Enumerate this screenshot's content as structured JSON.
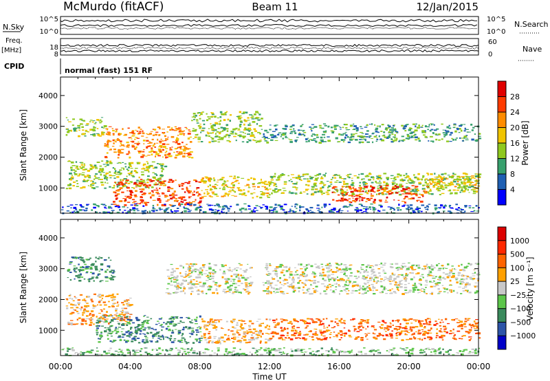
{
  "header": {
    "station": "McMurdo (fitACF)",
    "beam": "Beam 11",
    "date": "12/Jan/2015"
  },
  "panel_labels": {
    "nsky": "N.Sky",
    "nsearch": "N.Search",
    "freq": "Freq.",
    "freq_unit": "[MHz]",
    "nave": "Nave",
    "cpid": "CPID",
    "program": "normal (fast) 151 RF",
    "nsky_ticks": [
      "10^5",
      "10^0"
    ],
    "nsearch_ticks": [
      "10^5",
      "10^0"
    ],
    "freq_ticks": [
      "18",
      "8"
    ],
    "nave_ticks": [
      "60",
      "0"
    ]
  },
  "chart_data": [
    {
      "type": "heatmap",
      "name": "power",
      "xlabel": "",
      "ylabel": "Slant Range [km]",
      "xlim": [
        "00:00",
        "24:00"
      ],
      "ylim": [
        180,
        4600
      ],
      "y_ticks": [
        1000,
        2000,
        3000,
        4000
      ],
      "colorbar": {
        "label": "Power [dB]",
        "ticks": [
          "28",
          "24",
          "20",
          "16",
          "12",
          "8",
          "4"
        ],
        "colors": [
          "#0000ff",
          "#1f5fb3",
          "#37a06d",
          "#8fc91f",
          "#f0c400",
          "#ff8c00",
          "#ff3b00",
          "#e00000"
        ]
      },
      "regions": [
        {
          "t": [
            0.3,
            2.5
          ],
          "r": [
            2700,
            3300
          ],
          "level": 3
        },
        {
          "t": [
            2.5,
            7.5
          ],
          "r": [
            2000,
            3000
          ],
          "level": 5
        },
        {
          "t": [
            7.5,
            11.5
          ],
          "r": [
            2500,
            3500
          ],
          "level": 3
        },
        {
          "t": [
            11.5,
            24
          ],
          "r": [
            2500,
            3100
          ],
          "level": 2
        },
        {
          "t": [
            0.3,
            6
          ],
          "r": [
            1000,
            1900
          ],
          "level": 3
        },
        {
          "t": [
            3,
            8
          ],
          "r": [
            450,
            1300
          ],
          "level": 6
        },
        {
          "t": [
            8,
            12
          ],
          "r": [
            700,
            1400
          ],
          "level": 4
        },
        {
          "t": [
            12,
            24
          ],
          "r": [
            800,
            1500
          ],
          "level": 3
        },
        {
          "t": [
            15.5,
            21
          ],
          "r": [
            550,
            1100
          ],
          "level": 6
        },
        {
          "t": [
            21,
            24
          ],
          "r": [
            900,
            1500
          ],
          "level": 4
        },
        {
          "t": [
            0,
            24
          ],
          "r": [
            200,
            500
          ],
          "level": 1
        }
      ]
    },
    {
      "type": "heatmap",
      "name": "velocity",
      "xlabel": "Time UT",
      "ylabel": "Slant Range [km]",
      "xlim": [
        "00:00",
        "24:00"
      ],
      "ylim": [
        180,
        4600
      ],
      "x_ticks": [
        "00:00",
        "04:00",
        "08:00",
        "12:00",
        "16:00",
        "20:00",
        "00:00"
      ],
      "y_ticks": [
        1000,
        2000,
        3000,
        4000
      ],
      "colorbar": {
        "label": "Velocity [m s⁻¹]",
        "ticks": [
          "1000",
          "500",
          "100",
          "25",
          "−25",
          "−100",
          "−500",
          "−1000"
        ],
        "colors": [
          "#0000c8",
          "#2d55a8",
          "#3a8a5c",
          "#5cc64a",
          "#c8c8c8",
          "#ffa000",
          "#ff6400",
          "#ff2800",
          "#dc0000"
        ]
      },
      "regions": [
        {
          "t": [
            0.3,
            3
          ],
          "r": [
            2600,
            3400
          ],
          "level": 2
        },
        {
          "t": [
            0.3,
            4
          ],
          "r": [
            1200,
            2200
          ],
          "level": 5
        },
        {
          "t": [
            2,
            8
          ],
          "r": [
            600,
            1500
          ],
          "level": 2
        },
        {
          "t": [
            6,
            11
          ],
          "r": [
            2200,
            3200
          ],
          "level": 4
        },
        {
          "t": [
            8,
            12
          ],
          "r": [
            600,
            1400
          ],
          "level": 5
        },
        {
          "t": [
            11.5,
            24
          ],
          "r": [
            2200,
            3200
          ],
          "level": 4
        },
        {
          "t": [
            12,
            24
          ],
          "r": [
            700,
            1400
          ],
          "level": 6
        },
        {
          "t": [
            0,
            24
          ],
          "r": [
            200,
            450
          ],
          "level": 3
        }
      ]
    }
  ]
}
